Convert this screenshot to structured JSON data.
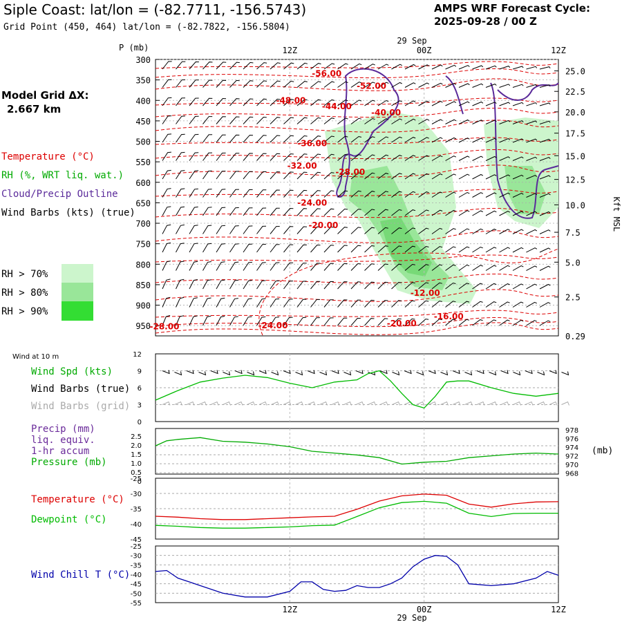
{
  "header": {
    "title": "Siple Coast:  lat/lon = (-82.7711, -156.5743)",
    "subtitle": "Grid Point (450, 464) lat/lon = (-82.7822, -156.5804)",
    "forecast_label": "AMPS WRF Forecast Cycle:",
    "forecast_cycle": "2025-09-28 / 00  Z"
  },
  "legend": {
    "model_grid_label": "Model Grid ΔX:",
    "model_grid_value": "2.667 km",
    "temperature": "Temperature (°C)",
    "rh": "RH (%, WRT liq. wat.)",
    "cloud": "Cloud/Precip Outline",
    "wind": "Wind Barbs (kts) (true)",
    "rh70": "RH > 70%",
    "rh80": "RH > 80%",
    "rh90": "RH > 90%",
    "rh70_color": "#ccf5cc",
    "rh80_color": "#99e699",
    "rh90_color": "#33dd33"
  },
  "top_axis": {
    "date_label": "29  Sep",
    "times": [
      "12Z",
      "00Z",
      "12Z"
    ],
    "p_label": "P  (mb)",
    "right_label": "Kft  MSL"
  },
  "bottom_axis": {
    "times": [
      "12Z",
      "00Z",
      "12Z"
    ],
    "date_label": "29  Sep"
  },
  "chart_data": [
    {
      "type": "heatmap",
      "name": "cross-section",
      "y_label": "P (mb)",
      "pressure_ticks": [
        300,
        350,
        400,
        450,
        500,
        550,
        600,
        650,
        700,
        750,
        800,
        850,
        900,
        950
      ],
      "height_ticks_kft": [
        "25.0",
        "22.5",
        "20.0",
        "17.5",
        "15.0",
        "12.5",
        "10.0",
        "7.5",
        "5.0",
        "2.5",
        "0.29"
      ],
      "height_tick_pressures": [
        328,
        378,
        428,
        480,
        535,
        593,
        655,
        722,
        795,
        880,
        975
      ],
      "x_range_hours": [
        0,
        36
      ],
      "temperature_labels": [
        {
          "text": "-56.00",
          "hour": 15.3,
          "p": 335
        },
        {
          "text": "-52.00",
          "hour": 19.3,
          "p": 365
        },
        {
          "text": "-48.00",
          "hour": 12.1,
          "p": 400
        },
        {
          "text": "-44.00",
          "hour": 16.2,
          "p": 415
        },
        {
          "text": "-40.00",
          "hour": 20.6,
          "p": 430
        },
        {
          "text": "-36.00",
          "hour": 14.0,
          "p": 505
        },
        {
          "text": "-32.00",
          "hour": 13.1,
          "p": 560
        },
        {
          "text": "-28.00",
          "hour": 17.4,
          "p": 575
        },
        {
          "text": "-24.00",
          "hour": 14.0,
          "p": 650
        },
        {
          "text": "-20.00",
          "hour": 15.0,
          "p": 705
        },
        {
          "text": "-12.00",
          "hour": 24.1,
          "p": 870
        },
        {
          "text": "-16.00",
          "hour": 26.2,
          "p": 928
        },
        {
          "text": "-20.00",
          "hour": 22.0,
          "p": 945
        },
        {
          "text": "-24.00",
          "hour": 10.5,
          "p": 950
        },
        {
          "text": "-28.00",
          "hour": 0.8,
          "p": 952
        }
      ]
    },
    {
      "type": "line",
      "name": "wind-10m",
      "title": "Wind at 10 m",
      "series_labels": [
        "Wind Spd (kts)",
        "Wind Barbs (true)",
        "Wind Barbs (grid)"
      ],
      "y_ticks": [
        0,
        3,
        6,
        9,
        12
      ],
      "ylim": [
        0,
        12
      ],
      "hours": [
        0,
        2,
        4,
        6,
        8,
        10,
        12,
        14,
        16,
        18,
        19,
        20,
        21,
        22,
        23,
        24,
        25,
        26,
        27,
        28,
        30,
        32,
        34,
        36
      ],
      "values": [
        3.8,
        5.5,
        7.0,
        7.7,
        8.2,
        7.8,
        6.8,
        6.0,
        7.0,
        7.4,
        8.5,
        9.0,
        7.2,
        5.0,
        3.0,
        2.4,
        4.5,
        7.0,
        7.2,
        7.2,
        6.0,
        5.0,
        4.5,
        5.0
      ]
    },
    {
      "type": "line",
      "name": "precip-pressure",
      "series_labels": [
        "Precip (mm)",
        "liq. equiv.",
        "1-hr accum",
        "Pressure (mb)"
      ],
      "left_ticks": [
        "2.5",
        "2.0",
        "1.5",
        "1.0",
        "0.5",
        "0"
      ],
      "right_ticks": [
        "978",
        "976",
        "974",
        "972",
        "970",
        "968"
      ],
      "right_label": "(mb)",
      "ylim_pressure": [
        968,
        978
      ],
      "hours": [
        0,
        1,
        2,
        4,
        6,
        8,
        10,
        12,
        14,
        16,
        18,
        20,
        22,
        24,
        26,
        28,
        30,
        32,
        34,
        36
      ],
      "pressure_values": [
        974.2,
        975.3,
        975.6,
        976.0,
        975.2,
        975.0,
        974.6,
        974.0,
        973.0,
        972.6,
        972.2,
        971.6,
        970.2,
        970.6,
        970.8,
        971.6,
        972.0,
        972.4,
        972.6,
        972.4
      ]
    },
    {
      "type": "line",
      "name": "temperature-dewpoint",
      "series_labels": [
        "Temperature (°C)",
        "Dewpoint (°C)"
      ],
      "y_ticks": [
        -25,
        -30,
        -35,
        -40,
        -45
      ],
      "ylim": [
        -45,
        -25
      ],
      "hours": [
        0,
        2,
        4,
        6,
        8,
        10,
        12,
        14,
        16,
        18,
        20,
        22,
        24,
        26,
        28,
        30,
        32,
        34,
        36
      ],
      "series": [
        {
          "name": "Temperature",
          "values": [
            -37.5,
            -37.8,
            -38.3,
            -38.6,
            -38.6,
            -38.3,
            -38.0,
            -37.7,
            -37.5,
            -35.2,
            -32.5,
            -30.8,
            -30.2,
            -30.6,
            -33.5,
            -34.5,
            -33.4,
            -32.8,
            -32.7
          ]
        },
        {
          "name": "Dewpoint",
          "values": [
            -40.5,
            -40.8,
            -41.2,
            -41.4,
            -41.4,
            -41.2,
            -41.0,
            -40.6,
            -40.4,
            -37.6,
            -34.7,
            -33.0,
            -32.6,
            -33.2,
            -36.5,
            -37.6,
            -36.6,
            -36.5,
            -36.5
          ]
        }
      ]
    },
    {
      "type": "line",
      "name": "wind-chill",
      "series_labels": [
        "Wind Chill T (°C)"
      ],
      "y_ticks": [
        -25,
        -30,
        -35,
        -40,
        -45,
        -50,
        -55
      ],
      "ylim": [
        -55,
        -25
      ],
      "hours": [
        0,
        1,
        2,
        3,
        4,
        6,
        8,
        10,
        12,
        13,
        14,
        15,
        16,
        17,
        18,
        19,
        20,
        21,
        22,
        23,
        24,
        25,
        26,
        27,
        28,
        30,
        32,
        34,
        35,
        36
      ],
      "values": [
        -38.5,
        -38,
        -42,
        -44,
        -46,
        -50,
        -52,
        -52,
        -49,
        -44,
        -44,
        -48,
        -49,
        -48.5,
        -46,
        -47,
        -47,
        -45,
        -42,
        -36,
        -32,
        -30,
        -30.5,
        -35,
        -45,
        -46,
        -45,
        -42,
        -38.5,
        -40.5
      ]
    }
  ],
  "colors": {
    "temperature": "#dd0000",
    "dewpoint": "#00bb00",
    "windchill": "#0000aa",
    "cloud": "#5a2a9a",
    "wind_speed": "#00bb00"
  }
}
